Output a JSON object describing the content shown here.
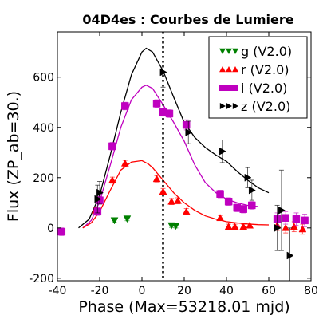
{
  "chart_data": {
    "type": "scatter",
    "title": "04D4es : Courbes de Lumiere",
    "xlabel": "Phase (Max=53218.01 mjd)",
    "ylabel": "Flux (ZP_ab=30.)",
    "xlim": [
      -40,
      80
    ],
    "ylim": [
      -210,
      780
    ],
    "xticks": [
      -40,
      -20,
      0,
      20,
      40,
      60,
      80
    ],
    "yticks": [
      -200,
      0,
      200,
      400,
      600
    ],
    "grid": false,
    "legend_position": "top-right",
    "max_phase_line": 10,
    "series": [
      {
        "name": "g (V2.0)",
        "color": "#008000",
        "marker": "triangle-down",
        "points": [
          [
            -13,
            30,
            8
          ],
          [
            -7,
            37,
            8
          ],
          [
            14,
            10,
            8
          ],
          [
            16,
            8,
            8
          ]
        ]
      },
      {
        "name": "r (V2.0)",
        "color": "#ff0000",
        "marker": "triangle-up",
        "points": [
          [
            -22,
            70,
            12
          ],
          [
            -14,
            190,
            12
          ],
          [
            -8,
            257,
            12
          ],
          [
            7,
            195,
            12
          ],
          [
            10,
            145,
            12
          ],
          [
            14,
            105,
            12
          ],
          [
            17,
            108,
            12
          ],
          [
            21,
            65,
            12
          ],
          [
            37,
            40,
            10
          ],
          [
            41,
            5,
            10
          ],
          [
            44,
            5,
            10
          ],
          [
            48,
            5,
            10
          ],
          [
            51,
            10,
            10
          ],
          [
            64,
            10,
            20
          ],
          [
            68,
            0,
            20
          ],
          [
            72,
            5,
            20
          ],
          [
            76,
            -5,
            20
          ]
        ]
      },
      {
        "name": "i (V2.0)",
        "color": "#bf00bf",
        "marker": "square",
        "points": [
          [
            -38,
            -15,
            15
          ],
          [
            -21,
            65,
            15
          ],
          [
            -20,
            110,
            15
          ],
          [
            -14,
            325,
            15
          ],
          [
            -8,
            485,
            15
          ],
          [
            7,
            495,
            15
          ],
          [
            10,
            460,
            15
          ],
          [
            13,
            455,
            15
          ],
          [
            21,
            410,
            20
          ],
          [
            37,
            135,
            15
          ],
          [
            41,
            105,
            15
          ],
          [
            45,
            80,
            15
          ],
          [
            48,
            75,
            15
          ],
          [
            52,
            90,
            15
          ],
          [
            64,
            35,
            25
          ],
          [
            68,
            40,
            25
          ],
          [
            73,
            35,
            25
          ],
          [
            77,
            30,
            25
          ]
        ]
      },
      {
        "name": "z (V2.0)",
        "color": "#000000",
        "marker": "triangle-right",
        "points": [
          [
            -21,
            115,
            55
          ],
          [
            -20,
            140,
            45
          ],
          [
            10,
            620,
            60
          ],
          [
            22,
            380,
            45
          ],
          [
            38,
            305,
            45
          ],
          [
            50,
            200,
            40
          ],
          [
            52,
            150,
            40
          ],
          [
            64,
            0,
            90
          ],
          [
            66,
            70,
            160
          ],
          [
            70,
            -110,
            110
          ]
        ]
      }
    ],
    "fits": [
      {
        "name": "z (V2.0)",
        "color": "#000000",
        "points": [
          [
            -30,
            0
          ],
          [
            -25,
            35
          ],
          [
            -20,
            130
          ],
          [
            -15,
            290
          ],
          [
            -10,
            460
          ],
          [
            -5,
            610
          ],
          [
            0,
            700
          ],
          [
            2,
            715
          ],
          [
            5,
            700
          ],
          [
            10,
            625
          ],
          [
            15,
            520
          ],
          [
            20,
            420
          ],
          [
            25,
            360
          ],
          [
            30,
            320
          ],
          [
            35,
            290
          ],
          [
            40,
            265
          ],
          [
            45,
            225
          ],
          [
            50,
            190
          ],
          [
            55,
            160
          ],
          [
            60,
            140
          ]
        ]
      },
      {
        "name": "i (V2.0)",
        "color": "#bf00bf",
        "points": [
          [
            -28,
            0
          ],
          [
            -24,
            30
          ],
          [
            -20,
            105
          ],
          [
            -15,
            250
          ],
          [
            -10,
            400
          ],
          [
            -5,
            510
          ],
          [
            0,
            560
          ],
          [
            2,
            568
          ],
          [
            5,
            555
          ],
          [
            10,
            490
          ],
          [
            15,
            420
          ],
          [
            20,
            345
          ],
          [
            25,
            250
          ],
          [
            30,
            180
          ],
          [
            35,
            140
          ],
          [
            40,
            115
          ],
          [
            45,
            100
          ],
          [
            50,
            90
          ],
          [
            55,
            85
          ]
        ]
      },
      {
        "name": "r (V2.0)",
        "color": "#ff0000",
        "points": [
          [
            -28,
            0
          ],
          [
            -24,
            20
          ],
          [
            -20,
            65
          ],
          [
            -15,
            150
          ],
          [
            -10,
            230
          ],
          [
            -5,
            262
          ],
          [
            0,
            268
          ],
          [
            3,
            255
          ],
          [
            5,
            240
          ],
          [
            10,
            190
          ],
          [
            15,
            140
          ],
          [
            20,
            100
          ],
          [
            25,
            70
          ],
          [
            30,
            48
          ],
          [
            35,
            35
          ],
          [
            40,
            25
          ],
          [
            45,
            20
          ],
          [
            50,
            16
          ],
          [
            55,
            13
          ],
          [
            60,
            12
          ]
        ]
      }
    ]
  }
}
